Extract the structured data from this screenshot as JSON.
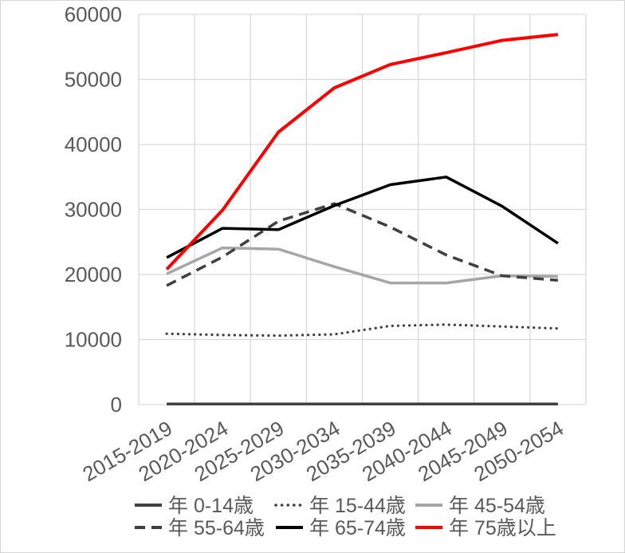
{
  "chart_data": {
    "type": "line",
    "title": "",
    "xlabel": "",
    "ylabel": "",
    "categories": [
      "2015-2019",
      "2020-2024",
      "2025-2029",
      "2030-2034",
      "2035-2039",
      "2040-2044",
      "2045-2049",
      "2050-2054"
    ],
    "series": [
      {
        "key": "age-0-14",
        "name": "年 0-14歳",
        "color": "#404040",
        "style": "solid",
        "values": [
          100,
          100,
          100,
          100,
          100,
          100,
          100,
          100
        ]
      },
      {
        "key": "age-15-44",
        "name": "年 15-44歳",
        "color": "#404040",
        "style": "dotted",
        "values": [
          10900,
          10700,
          10600,
          10800,
          12100,
          12300,
          12000,
          11700
        ]
      },
      {
        "key": "age-45-54",
        "name": "年 45-54歳",
        "color": "#a6a6a6",
        "style": "solid",
        "values": [
          20100,
          24100,
          23900,
          21200,
          18700,
          18700,
          19800,
          19700
        ]
      },
      {
        "key": "age-55-64",
        "name": "年 55-64歳",
        "color": "#404040",
        "style": "dashed",
        "values": [
          18300,
          22700,
          28200,
          30900,
          27300,
          23000,
          19800,
          19100
        ]
      },
      {
        "key": "age-65-74",
        "name": "年 65-74歳",
        "color": "#000000",
        "style": "solid",
        "values": [
          22600,
          27100,
          26900,
          30600,
          33800,
          35000,
          30500,
          24800
        ]
      },
      {
        "key": "age-75-plus",
        "name": "年 75歳以上",
        "color": "#ff0000",
        "style": "solid",
        "values": [
          20800,
          29900,
          41900,
          48700,
          52300,
          54100,
          56000,
          56900
        ]
      }
    ],
    "ylim": [
      0,
      60000
    ],
    "ytick_step": 10000,
    "yticks": [
      "0",
      "10000",
      "20000",
      "30000",
      "40000",
      "50000",
      "60000"
    ],
    "grid": true,
    "legend_position": "bottom",
    "legend_rows": [
      [
        "age-0-14",
        "age-15-44",
        "age-45-54"
      ],
      [
        "age-55-64",
        "age-65-74",
        "age-75-plus"
      ]
    ],
    "colors": {
      "axis_text": "#595959",
      "gridline": "#d9d9d9",
      "background": "#ffffff",
      "red_series": "#ff0000",
      "dark_gray_series": "#404040",
      "light_gray_series": "#a6a6a6",
      "black_series": "#000000"
    }
  }
}
